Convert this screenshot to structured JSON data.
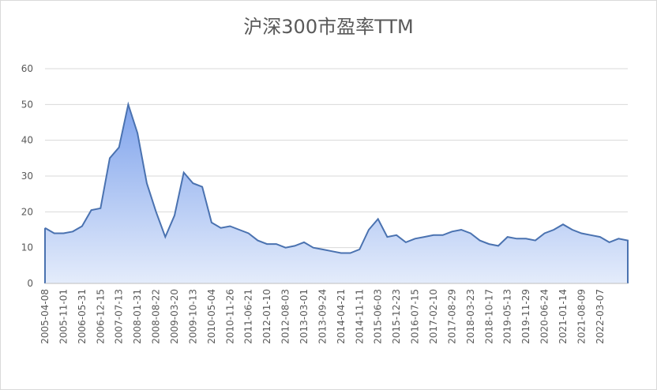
{
  "chart_data": {
    "type": "area",
    "title": "沪深300市盈率TTM",
    "categories": [
      "2005-04-08",
      null,
      "2005-11-01",
      null,
      "2006-05-31",
      null,
      "2006-12-15",
      null,
      "2007-07-13",
      null,
      "2008-01-31",
      null,
      "2008-08-22",
      null,
      "2009-03-20",
      null,
      "2009-10-13",
      null,
      "2010-05-04",
      null,
      "2010-11-26",
      null,
      "2011-06-21",
      null,
      "2012-01-10",
      null,
      "2012-08-03",
      null,
      "2013-03-01",
      null,
      "2013-09-24",
      null,
      "2014-04-21",
      null,
      "2014-11-11",
      null,
      "2015-06-03",
      null,
      "2015-12-23",
      null,
      "2016-07-15",
      null,
      "2017-02-10",
      null,
      "2017-08-29",
      null,
      "2018-03-23",
      null,
      "2018-10-17",
      null,
      "2019-05-13",
      null,
      "2019-11-29",
      null,
      "2020-06-24",
      null,
      "2021-01-14",
      null,
      "2021-08-09",
      null,
      "2022-03-07",
      null,
      null,
      null
    ],
    "values": [
      15.5,
      14,
      14,
      14.5,
      16,
      20.5,
      21,
      35,
      38,
      50,
      42,
      28,
      20,
      13,
      19,
      31,
      28,
      27,
      17,
      15.5,
      16,
      15,
      14,
      12,
      11,
      11,
      10,
      10.5,
      11.5,
      10,
      9.5,
      9,
      8.5,
      8.5,
      9.5,
      15,
      18,
      13,
      13.5,
      11.5,
      12.5,
      13,
      13.5,
      13.5,
      14.5,
      15,
      14,
      12,
      11,
      10.5,
      13,
      12.5,
      12.5,
      12,
      14,
      15,
      16.5,
      15,
      14,
      13.5,
      13,
      11.5,
      12.5,
      12
    ],
    "color": "#4a72b0",
    "ylim": [
      0,
      60
    ],
    "yticks": [
      0,
      10,
      20,
      30,
      40,
      50,
      60
    ],
    "grid": true
  }
}
